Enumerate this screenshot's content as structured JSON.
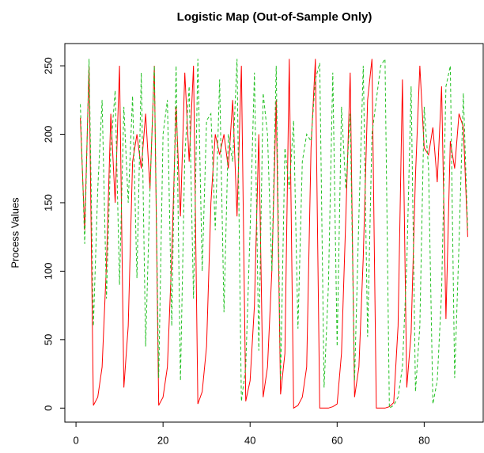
{
  "chart_data": {
    "type": "line",
    "title": "Logistic Map (Out-of-Sample Only)",
    "ylabel": "Process Values",
    "x": [
      1,
      2,
      3,
      4,
      5,
      6,
      7,
      8,
      9,
      10,
      11,
      12,
      13,
      14,
      15,
      16,
      17,
      18,
      19,
      20,
      21,
      22,
      23,
      24,
      25,
      26,
      27,
      28,
      29,
      30,
      31,
      32,
      33,
      34,
      35,
      36,
      37,
      38,
      39,
      40,
      41,
      42,
      43,
      44,
      45,
      46,
      47,
      48,
      49,
      50,
      51,
      52,
      53,
      54,
      55,
      56,
      57,
      58,
      59,
      60,
      61,
      62,
      63,
      64,
      65,
      66,
      67,
      68,
      69,
      70,
      71,
      72,
      73,
      74,
      75,
      76,
      77,
      78,
      79,
      80,
      81,
      82,
      83,
      84,
      85,
      86,
      87,
      88,
      89,
      90
    ],
    "series": [
      {
        "color": "#ff0000",
        "dashed": false,
        "values": [
          212,
          130,
          250,
          2,
          8,
          30,
          105,
          215,
          150,
          250,
          15,
          60,
          180,
          200,
          175,
          215,
          160,
          250,
          2,
          8,
          30,
          110,
          220,
          140,
          245,
          180,
          250,
          3,
          12,
          45,
          150,
          200,
          185,
          200,
          175,
          225,
          140,
          250,
          5,
          20,
          75,
          200,
          8,
          30,
          100,
          225,
          10,
          40,
          255,
          0,
          2,
          8,
          30,
          190,
          255,
          0,
          0,
          0,
          1,
          3,
          40,
          140,
          245,
          8,
          30,
          110,
          225,
          255,
          0,
          0,
          0,
          1,
          4,
          60,
          240,
          15,
          55,
          170,
          250,
          190,
          185,
          205,
          165,
          235,
          65,
          195,
          175,
          215,
          205,
          125
        ]
      },
      {
        "color": "#22c022",
        "dashed": true,
        "values": [
          222,
          120,
          255,
          60,
          160,
          225,
          80,
          190,
          232,
          90,
          220,
          150,
          228,
          95,
          245,
          45,
          160,
          250,
          22,
          200,
          225,
          60,
          250,
          20,
          185,
          235,
          80,
          255,
          100,
          210,
          215,
          130,
          240,
          70,
          200,
          180,
          255,
          5,
          30,
          130,
          245,
          42,
          230,
          200,
          100,
          250,
          20,
          190,
          160,
          210,
          58,
          180,
          200,
          195,
          240,
          252,
          15,
          90,
          245,
          45,
          220,
          160,
          215,
          20,
          140,
          250,
          52,
          200,
          225,
          250,
          255,
          0,
          2,
          8,
          30,
          105,
          235,
          12,
          60,
          220,
          175,
          3,
          20,
          85,
          235,
          250,
          22,
          120,
          230,
          130
        ]
      }
    ],
    "xlim": [
      -2.56,
      93.56
    ],
    "ylim": [
      -10.24,
      266.24
    ],
    "xticks": [
      0,
      20,
      40,
      60,
      80
    ],
    "yticks": [
      0,
      50,
      100,
      150,
      200,
      250
    ]
  }
}
